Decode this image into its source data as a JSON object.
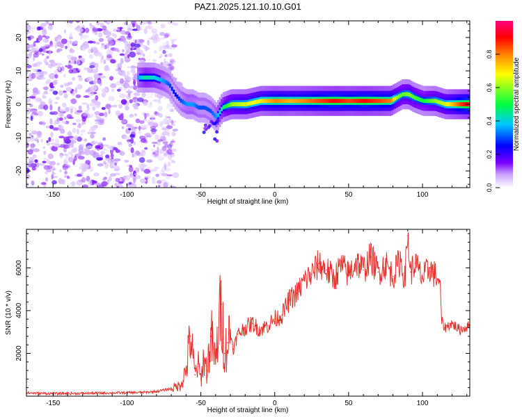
{
  "title": "PAZ1.2025.121.10.10.G01",
  "chart_data": [
    {
      "type": "heatmap",
      "xlabel": "Height of straight line (km)",
      "ylabel": "Frequency (Hz)",
      "xlim": [
        -168,
        132
      ],
      "ylim": [
        -25,
        25
      ],
      "x_ticks": [
        -150,
        -100,
        -50,
        0,
        50,
        100
      ],
      "y_ticks": [
        -20,
        -10,
        0,
        10,
        20
      ],
      "colorbar": {
        "label": "Normalized spectral amplitude",
        "range": [
          0,
          1
        ],
        "ticks": [
          "0.0",
          "0.2",
          "0.4",
          "0.6",
          "0.8"
        ],
        "colors": [
          "#ffffff",
          "#c8a0ff",
          "#7a00ff",
          "#0000ff",
          "#00c8ff",
          "#00ff40",
          "#ffff00",
          "#ff8000",
          "#ff0000",
          "#ff0080"
        ]
      },
      "noise_region_x": [
        -168,
        -73
      ],
      "signal_trace": {
        "x": [
          -93,
          -88,
          -82,
          -76,
          -72,
          -68,
          -64,
          -60,
          -56,
          -52,
          -48,
          -44,
          -40,
          -36,
          -30,
          -20,
          -10,
          0,
          10,
          20,
          30,
          40,
          50,
          60,
          70,
          78,
          82,
          86,
          90,
          94,
          100,
          108,
          115,
          125,
          132
        ],
        "y": [
          8,
          8,
          8,
          7,
          6,
          3,
          1,
          0,
          0,
          -1,
          -1,
          -2,
          -4,
          -1,
          0,
          0,
          1,
          1,
          1,
          1,
          1,
          1,
          1,
          1,
          1,
          1,
          2,
          3,
          3,
          2,
          1,
          1,
          0,
          0,
          0
        ],
        "amplitude": [
          0.35,
          0.45,
          0.4,
          0.35,
          0.3,
          0.25,
          0.3,
          0.35,
          0.35,
          0.3,
          0.3,
          0.3,
          0.35,
          0.45,
          0.6,
          0.65,
          0.7,
          0.8,
          0.75,
          0.8,
          0.85,
          0.9,
          0.85,
          0.9,
          0.85,
          0.8,
          0.6,
          0.55,
          0.6,
          0.55,
          0.5,
          0.6,
          0.65,
          0.85,
          0.95
        ]
      }
    },
    {
      "type": "line",
      "xlabel": "Height of straight line (km)",
      "ylabel": "SNR (10 * v/v)",
      "xlim": [
        -168,
        132
      ],
      "ylim": [
        0,
        7800
      ],
      "x_ticks": [
        -150,
        -100,
        -50,
        0,
        50,
        100
      ],
      "y_ticks": [
        2000,
        4000,
        6000
      ],
      "color": "#e8302a",
      "series": [
        {
          "x": [
            -168,
            -150,
            -130,
            -110,
            -90,
            -80,
            -70,
            -64,
            -60,
            -57,
            -54,
            -52,
            -50,
            -48,
            -46,
            -43,
            -40,
            -38,
            -36,
            -34,
            -32,
            -30,
            -28,
            -25,
            -20,
            -15,
            -10,
            -5,
            0,
            5,
            10,
            15,
            20,
            25,
            30,
            35,
            40,
            45,
            50,
            55,
            60,
            65,
            70,
            75,
            80,
            85,
            88,
            90,
            92,
            95,
            100,
            105,
            110,
            112,
            113,
            115,
            120,
            125,
            132
          ],
          "y": [
            150,
            120,
            130,
            150,
            170,
            220,
            350,
            500,
            1200,
            2800,
            1000,
            1500,
            800,
            1800,
            1200,
            2800,
            1500,
            3200,
            4300,
            2000,
            2500,
            3000,
            2200,
            2900,
            3200,
            3400,
            3100,
            3300,
            3600,
            3800,
            4500,
            4800,
            5400,
            5700,
            6200,
            5900,
            5500,
            6100,
            5700,
            6300,
            5900,
            6500,
            5800,
            6200,
            5600,
            6400,
            5500,
            7500,
            5800,
            6200,
            5500,
            6000,
            5500,
            5200,
            3500,
            3200,
            3400,
            3100,
            3300
          ]
        }
      ]
    }
  ]
}
